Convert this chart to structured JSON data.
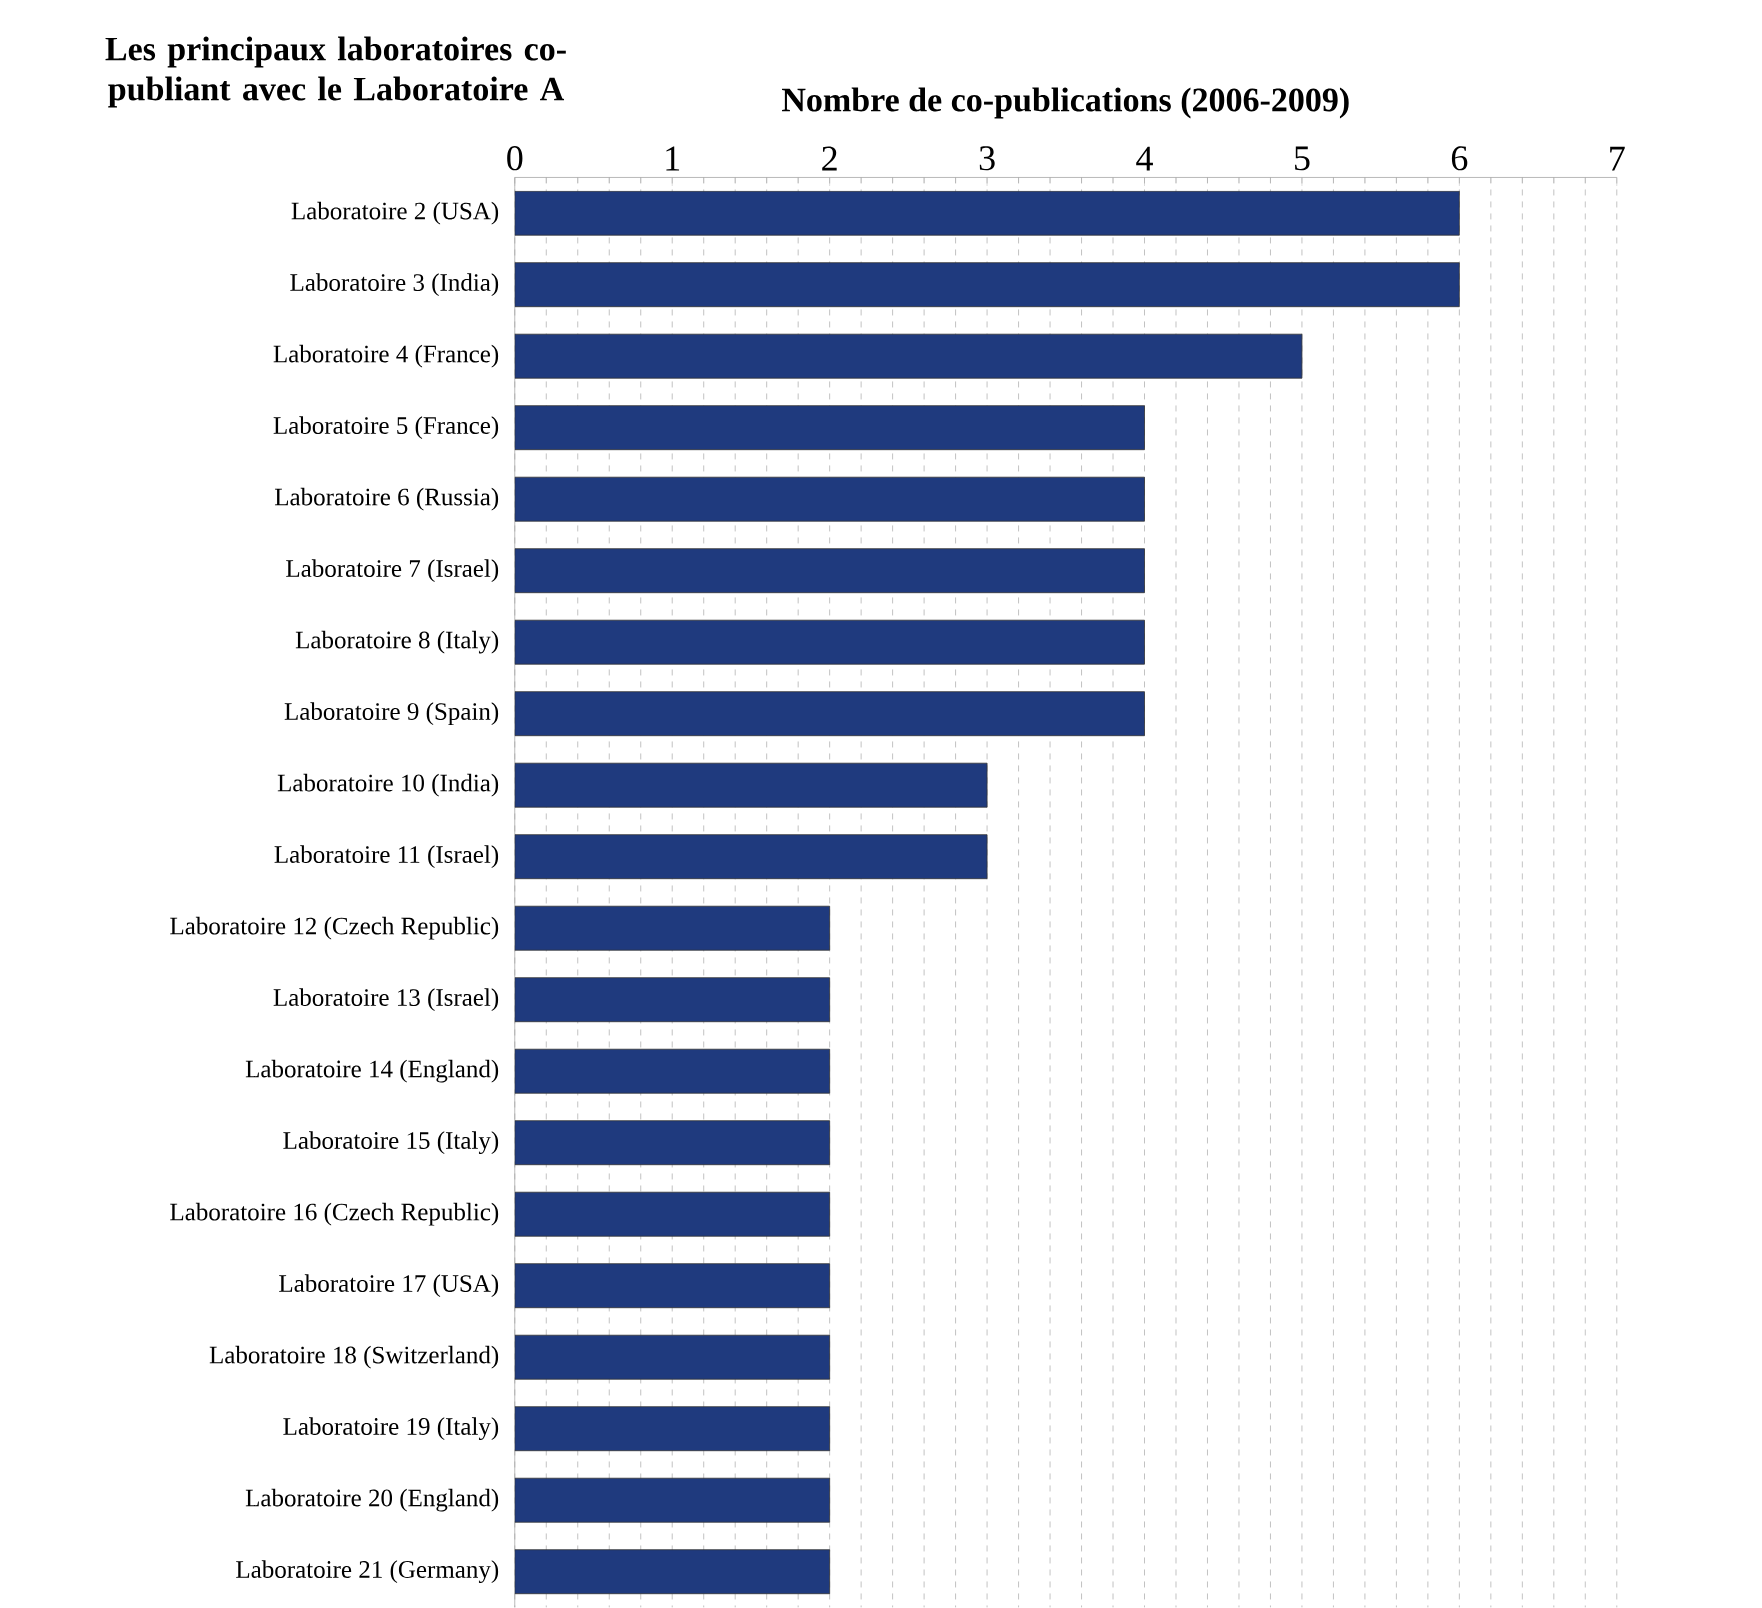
{
  "chart_data": {
    "type": "bar",
    "orientation": "horizontal",
    "title": "Les principaux laboratoires co-publiant avec le Laboratoire A",
    "xlabel": "Nombre de co-publications (2006-2009)",
    "categories": [
      "Laboratoire 2 (USA)",
      "Laboratoire 3 (India)",
      "Laboratoire 4 (France)",
      "Laboratoire 5 (France)",
      "Laboratoire 6 (Russia)",
      "Laboratoire 7 (Israel)",
      "Laboratoire 8 (Italy)",
      "Laboratoire 9 (Spain)",
      "Laboratoire 10 (India)",
      "Laboratoire 11 (Israel)",
      "Laboratoire 12 (Czech Republic)",
      "Laboratoire 13 (Israel)",
      "Laboratoire 14 (England)",
      "Laboratoire 15 (Italy)",
      "Laboratoire 16 (Czech Republic)",
      "Laboratoire 17 (USA)",
      "Laboratoire 18 (Switzerland)",
      "Laboratoire 19 (Italy)",
      "Laboratoire 20 (England)",
      "Laboratoire 21 (Germany)"
    ],
    "values": [
      6,
      6,
      5,
      4,
      4,
      4,
      4,
      4,
      3,
      3,
      2,
      2,
      2,
      2,
      2,
      2,
      2,
      2,
      2,
      2
    ],
    "color": "#1f3a7e",
    "xlim": [
      0,
      7
    ],
    "xticks": [
      0,
      1,
      2,
      3,
      4,
      5,
      6,
      7
    ],
    "grid": "x"
  }
}
